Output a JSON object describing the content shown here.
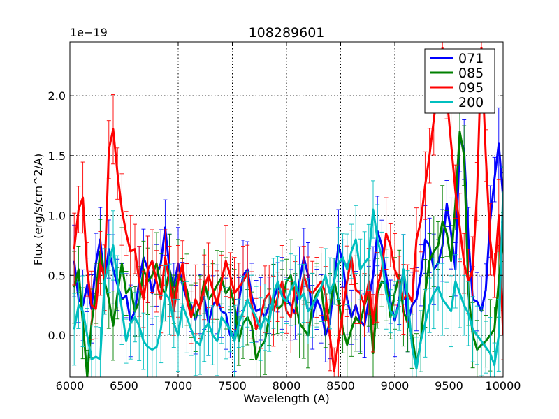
{
  "chart_data": {
    "type": "line",
    "title": "108289601",
    "xlabel": "Wavelength (A)",
    "ylabel": "Flux (erg/s/cm^2/A)",
    "offset_text": "1e−19",
    "xlim": [
      6000,
      10000
    ],
    "ylim": [
      -0.35,
      2.45
    ],
    "xticks": [
      6000,
      6500,
      7000,
      7500,
      8000,
      8500,
      9000,
      9500,
      10000
    ],
    "xtick_labels": [
      "6000",
      "6500",
      "7000",
      "7500",
      "8000",
      "8500",
      "9000",
      "9500",
      "10000"
    ],
    "yticks": [
      0.0,
      0.5,
      1.0,
      1.5,
      2.0
    ],
    "ytick_labels": [
      "0.0",
      "0.5",
      "1.0",
      "1.5",
      "2.0"
    ],
    "grid": true,
    "legend_position": "top-right",
    "series": [
      {
        "name": "071",
        "color": "#0000ff",
        "x": [
          6040,
          6080,
          6120,
          6160,
          6200,
          6240,
          6280,
          6320,
          6360,
          6400,
          6440,
          6480,
          6520,
          6560,
          6600,
          6640,
          6680,
          6720,
          6760,
          6800,
          6840,
          6880,
          6920,
          6960,
          7000,
          7040,
          7080,
          7120,
          7160,
          7200,
          7240,
          7280,
          7320,
          7360,
          7400,
          7440,
          7480,
          7520,
          7560,
          7600,
          7640,
          7680,
          7720,
          7760,
          7800,
          7840,
          7880,
          7920,
          7960,
          8000,
          8040,
          8080,
          8120,
          8160,
          8200,
          8240,
          8280,
          8320,
          8360,
          8400,
          8440,
          8480,
          8520,
          8560,
          8600,
          8640,
          8680,
          8720,
          8760,
          8800,
          8840,
          8880,
          8920,
          8960,
          9000,
          9040,
          9080,
          9120,
          9160,
          9200,
          9240,
          9280,
          9320,
          9360,
          9400,
          9440,
          9480,
          9520,
          9560,
          9600,
          9640,
          9680,
          9720,
          9760,
          9800,
          9840,
          9880,
          9920,
          9960,
          10000
        ],
        "y": [
          0.62,
          0.3,
          0.25,
          0.42,
          0.22,
          0.6,
          0.8,
          0.45,
          0.72,
          0.55,
          0.42,
          0.3,
          0.33,
          0.12,
          0.2,
          0.45,
          0.65,
          0.55,
          0.35,
          0.5,
          0.6,
          0.9,
          0.55,
          0.4,
          0.6,
          0.42,
          0.3,
          0.25,
          0.13,
          0.26,
          0.32,
          0.1,
          0.25,
          0.3,
          0.2,
          0.18,
          0.0,
          0.0,
          0.28,
          0.5,
          0.55,
          0.32,
          0.2,
          0.22,
          0.15,
          0.25,
          0.3,
          0.4,
          0.35,
          0.3,
          0.25,
          0.18,
          0.45,
          0.65,
          0.5,
          0.15,
          0.3,
          0.22,
          0.0,
          0.1,
          0.45,
          0.75,
          0.6,
          0.3,
          0.15,
          0.25,
          0.12,
          0.08,
          0.3,
          0.5,
          0.87,
          0.75,
          0.5,
          0.28,
          0.12,
          0.3,
          0.55,
          0.1,
          0.25,
          0.3,
          0.5,
          0.8,
          0.75,
          0.55,
          0.6,
          0.75,
          1.1,
          0.85,
          0.55,
          1.65,
          1.55,
          0.8,
          0.3,
          0.28,
          0.2,
          0.38,
          0.95,
          1.3,
          1.6,
          1.15
        ]
      },
      {
        "name": "085",
        "color": "#008000",
        "x": [
          6040,
          6080,
          6120,
          6160,
          6200,
          6240,
          6280,
          6320,
          6360,
          6400,
          6440,
          6480,
          6520,
          6560,
          6600,
          6640,
          6680,
          6720,
          6760,
          6800,
          6840,
          6880,
          6920,
          6960,
          7000,
          7040,
          7080,
          7120,
          7160,
          7200,
          7240,
          7280,
          7320,
          7360,
          7400,
          7440,
          7480,
          7520,
          7560,
          7600,
          7640,
          7680,
          7720,
          7760,
          7800,
          7840,
          7880,
          7920,
          7960,
          8000,
          8040,
          8080,
          8120,
          8160,
          8200,
          8240,
          8280,
          8320,
          8360,
          8400,
          8440,
          8480,
          8520,
          8560,
          8600,
          8640,
          8680,
          8720,
          8760,
          8800,
          8840,
          8880,
          8920,
          8960,
          9000,
          9040,
          9080,
          9120,
          9160,
          9200,
          9240,
          9280,
          9320,
          9360,
          9400,
          9440,
          9480,
          9520,
          9560,
          9600,
          9640,
          9680,
          9720,
          9760,
          9800,
          9840,
          9880,
          9920,
          9960,
          10000
        ],
        "y": [
          0.4,
          0.55,
          0.1,
          -0.35,
          0.1,
          0.35,
          0.7,
          0.45,
          0.3,
          0.08,
          0.35,
          0.6,
          0.35,
          0.4,
          0.2,
          0.28,
          0.55,
          0.45,
          0.5,
          0.6,
          0.4,
          0.35,
          0.55,
          0.3,
          0.5,
          0.45,
          0.38,
          0.2,
          0.15,
          0.25,
          0.45,
          0.3,
          0.35,
          0.42,
          0.48,
          0.35,
          0.4,
          0.25,
          -0.05,
          0.1,
          0.15,
          0.08,
          -0.2,
          -0.1,
          -0.05,
          0.15,
          0.3,
          0.22,
          0.25,
          0.45,
          0.5,
          0.3,
          0.1,
          0.05,
          0.0,
          0.25,
          0.35,
          0.4,
          0.12,
          0.22,
          0.45,
          0.3,
          0.05,
          -0.08,
          0.05,
          0.15,
          0.1,
          0.25,
          0.35,
          -0.15,
          0.35,
          0.45,
          0.42,
          0.15,
          0.35,
          0.5,
          0.2,
          0.1,
          0.0,
          -0.25,
          -0.05,
          0.35,
          0.62,
          0.7,
          0.75,
          0.95,
          0.85,
          0.62,
          1.1,
          1.7,
          1.5,
          0.35,
          0.0,
          -0.12,
          -0.08,
          -0.05,
          0.0,
          0.05,
          0.45,
          0.82
        ]
      },
      {
        "name": "095",
        "color": "#ff0000",
        "x": [
          6040,
          6080,
          6120,
          6160,
          6200,
          6240,
          6280,
          6320,
          6360,
          6400,
          6440,
          6480,
          6520,
          6560,
          6600,
          6640,
          6680,
          6720,
          6760,
          6800,
          6840,
          6880,
          6920,
          6960,
          7000,
          7040,
          7080,
          7120,
          7160,
          7200,
          7240,
          7280,
          7320,
          7360,
          7400,
          7440,
          7480,
          7520,
          7560,
          7600,
          7640,
          7680,
          7720,
          7760,
          7800,
          7840,
          7880,
          7920,
          7960,
          8000,
          8040,
          8080,
          8120,
          8160,
          8200,
          8240,
          8280,
          8320,
          8360,
          8400,
          8440,
          8480,
          8520,
          8560,
          8600,
          8640,
          8680,
          8720,
          8760,
          8800,
          8840,
          8880,
          8920,
          8960,
          9000,
          9040,
          9080,
          9120,
          9160,
          9200,
          9240,
          9280,
          9320,
          9360,
          9400,
          9440,
          9480,
          9520,
          9560,
          9600,
          9640,
          9680,
          9720,
          9760,
          9800,
          9840,
          9880,
          9920,
          9960,
          10000
        ],
        "y": [
          0.72,
          1.05,
          1.15,
          0.55,
          0.25,
          0.22,
          0.6,
          0.48,
          1.55,
          1.72,
          1.35,
          1.05,
          0.85,
          0.7,
          0.72,
          0.45,
          0.3,
          0.55,
          0.62,
          0.45,
          0.3,
          0.65,
          0.45,
          0.2,
          0.45,
          0.6,
          0.3,
          0.15,
          0.3,
          0.22,
          0.4,
          0.5,
          0.38,
          0.25,
          0.45,
          0.62,
          0.5,
          0.35,
          0.4,
          0.45,
          0.52,
          0.25,
          0.05,
          0.15,
          0.3,
          0.35,
          0.2,
          0.32,
          0.45,
          0.2,
          0.15,
          0.4,
          0.3,
          0.5,
          0.38,
          0.35,
          0.4,
          0.45,
          0.35,
          0.0,
          -0.3,
          -0.05,
          0.2,
          0.45,
          0.65,
          0.38,
          0.35,
          0.25,
          0.45,
          0.1,
          0.4,
          0.55,
          0.85,
          0.75,
          0.55,
          0.45,
          0.3,
          0.35,
          0.28,
          0.8,
          0.95,
          1.25,
          1.5,
          1.8,
          2.1,
          2.4,
          2.0,
          1.6,
          1.2,
          0.9,
          0.6,
          0.45,
          0.55,
          1.2,
          2.4,
          1.5,
          0.8,
          0.5,
          1.0,
          0.0
        ]
      },
      {
        "name": "200",
        "color": "#00bfbf",
        "x": [
          6040,
          6080,
          6120,
          6160,
          6200,
          6240,
          6280,
          6320,
          6360,
          6400,
          6440,
          6480,
          6520,
          6560,
          6600,
          6640,
          6680,
          6720,
          6760,
          6800,
          6840,
          6880,
          6920,
          6960,
          7000,
          7040,
          7080,
          7120,
          7160,
          7200,
          7240,
          7280,
          7320,
          7360,
          7400,
          7440,
          7480,
          7520,
          7560,
          7600,
          7640,
          7680,
          7720,
          7760,
          7800,
          7840,
          7880,
          7920,
          7960,
          8000,
          8040,
          8080,
          8120,
          8160,
          8200,
          8240,
          8280,
          8320,
          8360,
          8400,
          8440,
          8480,
          8520,
          8560,
          8600,
          8640,
          8680,
          8720,
          8760,
          8800,
          8840,
          8880,
          8920,
          8960,
          9000,
          9040,
          9080,
          9120,
          9160,
          9200,
          9240,
          9280,
          9320,
          9360,
          9400,
          9440,
          9480,
          9520,
          9560,
          9600,
          9640,
          9680,
          9720,
          9760,
          9800,
          9840,
          9880,
          9920,
          9960,
          10000
        ],
        "y": [
          0.05,
          0.25,
          0.2,
          0.0,
          -0.2,
          -0.18,
          -0.2,
          0.45,
          0.6,
          0.75,
          0.45,
          0.22,
          -0.05,
          0.1,
          0.15,
          0.08,
          -0.05,
          -0.1,
          -0.12,
          -0.1,
          0.05,
          0.35,
          0.3,
          0.1,
          0.0,
          0.25,
          0.15,
          0.05,
          -0.05,
          -0.08,
          0.05,
          0.1,
          0.0,
          -0.05,
          0.15,
          0.1,
          0.05,
          -0.05,
          0.1,
          0.2,
          0.3,
          0.22,
          0.15,
          0.05,
          0.15,
          0.1,
          0.35,
          0.45,
          0.32,
          0.28,
          0.38,
          0.45,
          0.3,
          0.35,
          0.2,
          0.25,
          0.32,
          0.4,
          0.5,
          0.35,
          0.45,
          0.6,
          0.65,
          0.55,
          0.7,
          0.8,
          0.55,
          0.6,
          0.65,
          1.05,
          0.8,
          0.65,
          0.35,
          0.2,
          0.15,
          0.25,
          0.55,
          0.3,
          -0.1,
          -0.28,
          -0.05,
          0.1,
          0.25,
          0.35,
          0.4,
          0.3,
          0.25,
          0.2,
          0.45,
          0.35,
          0.25,
          0.18,
          0.05,
          0.0,
          -0.05,
          -0.1,
          -0.15,
          -0.25,
          0.0,
          1.2
        ]
      }
    ]
  }
}
